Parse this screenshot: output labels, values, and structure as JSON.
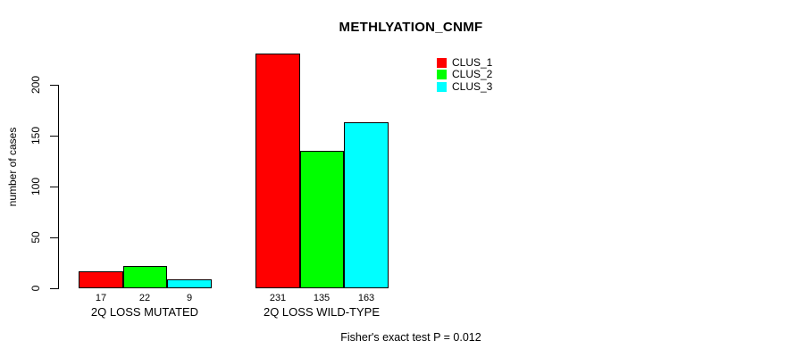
{
  "chart_data": {
    "type": "bar",
    "title": "METHLYATION_CNMF",
    "ylabel": "number of cases",
    "xlabel": "",
    "categories": [
      "2Q LOSS MUTATED",
      "2Q LOSS WILD-TYPE"
    ],
    "series": [
      {
        "name": "CLUS_1",
        "color": "#ff0000",
        "values": [
          17,
          231
        ]
      },
      {
        "name": "CLUS_2",
        "color": "#00ff00",
        "values": [
          22,
          135
        ]
      },
      {
        "name": "CLUS_3",
        "color": "#00ffff",
        "values": [
          9,
          163
        ]
      }
    ],
    "yticks": [
      0,
      50,
      100,
      150,
      200
    ],
    "ylim": [
      0,
      231
    ],
    "grid": false,
    "legend_position": "top-right",
    "bar_border_color": "#000000",
    "value_labels_shown": true,
    "annotation": "Fisher's exact test P = 0.012"
  }
}
